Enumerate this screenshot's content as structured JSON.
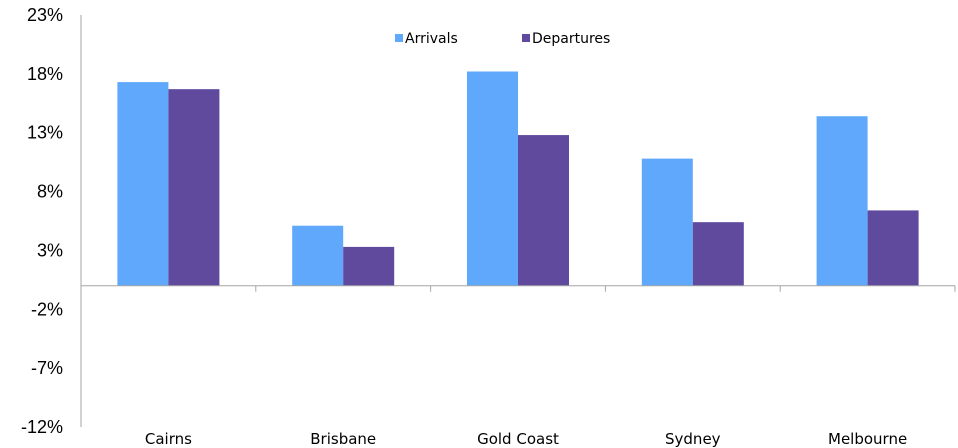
{
  "chart_data": {
    "type": "bar",
    "title": "",
    "xlabel": "",
    "ylabel": "",
    "categories": [
      "Cairns",
      "Brisbane",
      "Gold Coast",
      "Sydney",
      "Melbourne"
    ],
    "series": [
      {
        "name": "Arrivals",
        "color": "#5fa8fc",
        "values": [
          17.3,
          5.1,
          18.2,
          10.8,
          14.4
        ]
      },
      {
        "name": "Departures",
        "color": "#5f4a9e",
        "values": [
          16.7,
          3.3,
          12.8,
          5.4,
          6.4
        ]
      }
    ],
    "ylim": [
      -12,
      23
    ],
    "yticks": [
      23,
      18,
      13,
      8,
      3,
      -2,
      -7,
      -12
    ],
    "ytick_labels": [
      "23%",
      "18%",
      "13%",
      "8%",
      "3%",
      "-2%",
      "-7%",
      "-12%"
    ],
    "grid": false,
    "legend_position": "top-center"
  }
}
